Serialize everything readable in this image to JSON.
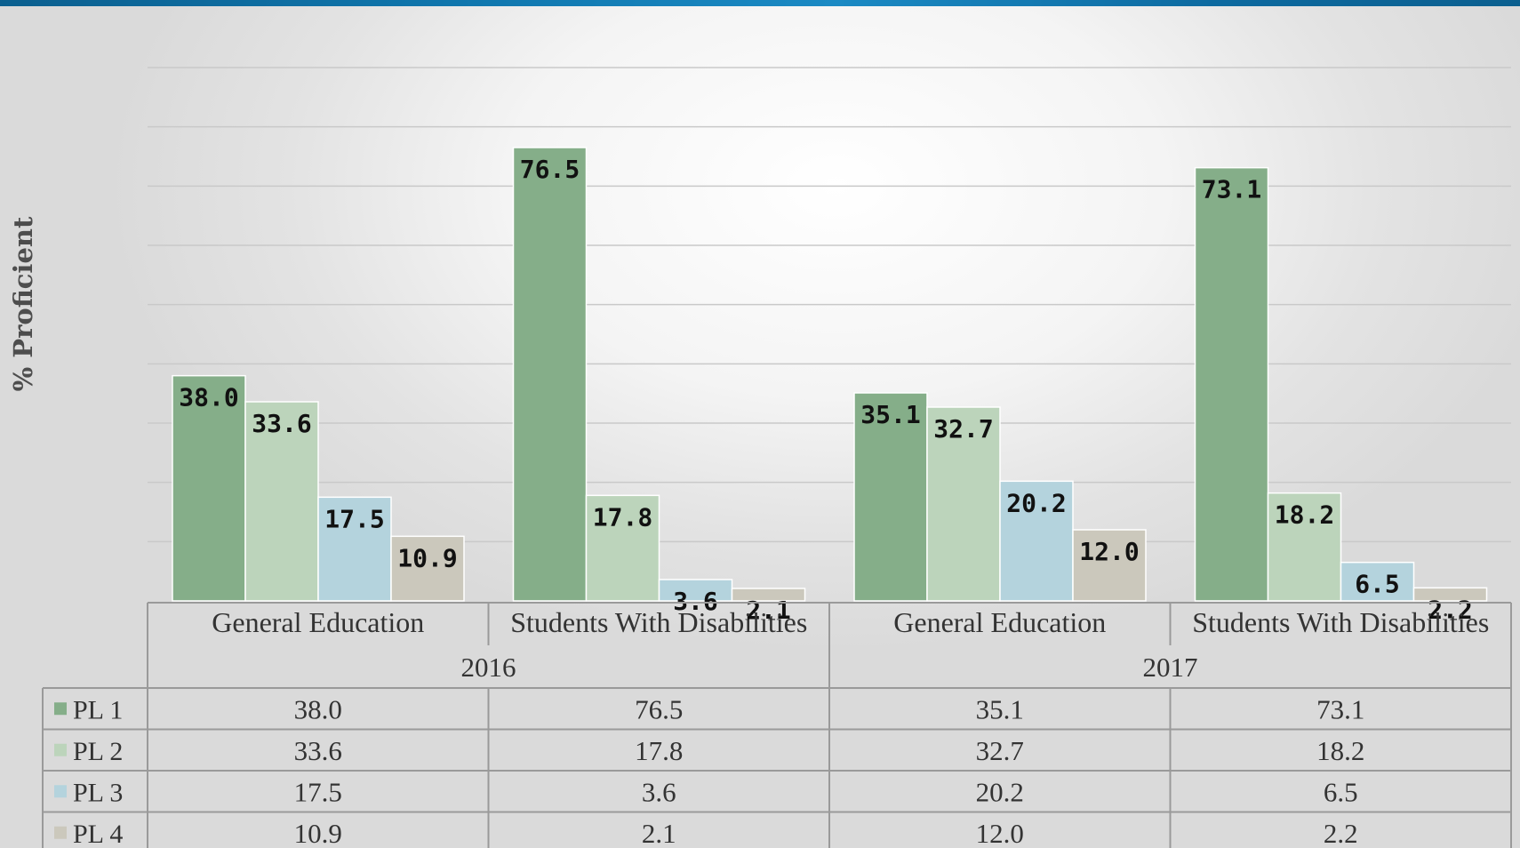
{
  "colors": {
    "top_bar": "#0f76ad",
    "PL 1": "#85ae89",
    "PL 2": "#bcd4bb",
    "PL 3": "#b4d3dd",
    "PL 4": "#cbc8bc"
  },
  "chart_data": {
    "type": "bar",
    "ylabel": "% Proficient",
    "ylim": [
      0,
      90
    ],
    "grid": true,
    "legend": "data-table-left",
    "groups": [
      {
        "name": "2016",
        "categories": [
          "General Education",
          "Students With Disabilities"
        ]
      },
      {
        "name": "2017",
        "categories": [
          "General Education",
          "Students With Disabilities"
        ]
      }
    ],
    "categories": [
      "General Education",
      "Students With Disabilities",
      "General Education",
      "Students With Disabilities"
    ],
    "series": [
      {
        "name": "PL 1",
        "values": [
          38.0,
          76.5,
          35.1,
          73.1
        ],
        "labels": [
          "38.0",
          "76.5",
          "35.1",
          "73.1"
        ]
      },
      {
        "name": "PL 2",
        "values": [
          33.6,
          17.8,
          32.7,
          18.2
        ],
        "labels": [
          "33.6",
          "17.8",
          "32.7",
          "18.2"
        ]
      },
      {
        "name": "PL 3",
        "values": [
          17.5,
          3.6,
          20.2,
          6.5
        ],
        "labels": [
          "17.5",
          "3.6",
          "20.2",
          "6.5"
        ]
      },
      {
        "name": "PL 4",
        "values": [
          10.9,
          2.1,
          12.0,
          2.2
        ],
        "labels": [
          "10.9",
          "2.1",
          "12.0",
          "2.2"
        ]
      }
    ]
  }
}
